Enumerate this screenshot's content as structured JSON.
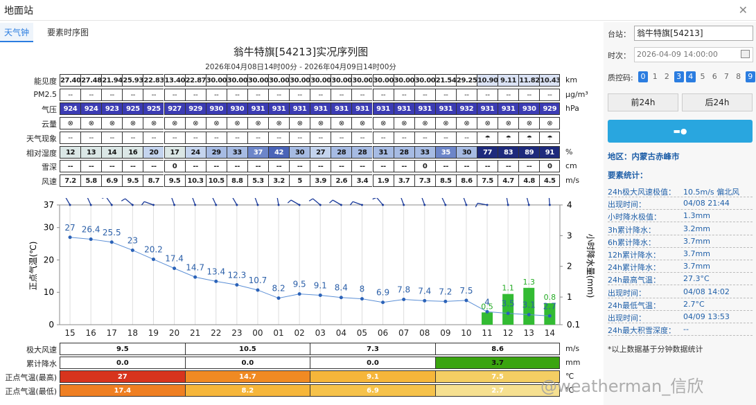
{
  "window_title": "地面站",
  "tabs": [
    "天气钟",
    "要素时序图"
  ],
  "title": "翁牛特旗[54213]实况序列图",
  "subtitle": "2026年04月08日14时00分 - 2026年04月09日14时00分",
  "grid": {
    "rows": [
      {
        "label": "能见度",
        "unit": "km",
        "values": [
          "27.40",
          "27.48",
          "21.94",
          "25.93",
          "22.83",
          "13.40",
          "22.87",
          "30.00",
          "30.00",
          "30.00",
          "30.00",
          "30.00",
          "30.00",
          "30.00",
          "30.00",
          "30.00",
          "30.00",
          "30.00",
          "21.54",
          "29.25",
          "10.90",
          "9.11",
          "11.82",
          "10.43"
        ]
      },
      {
        "label": "PM2.5",
        "unit": "μg/m³",
        "values": [
          "--",
          "--",
          "--",
          "--",
          "--",
          "--",
          "--",
          "--",
          "--",
          "--",
          "--",
          "--",
          "--",
          "--",
          "--",
          "--",
          "--",
          "--",
          "--",
          "--",
          "--",
          "--",
          "--",
          "--"
        ]
      },
      {
        "label": "气压",
        "unit": "hPa",
        "values": [
          "924",
          "924",
          "923",
          "925",
          "925",
          "927",
          "929",
          "930",
          "930",
          "931",
          "931",
          "931",
          "931",
          "931",
          "931",
          "931",
          "931",
          "931",
          "931",
          "932",
          "931",
          "931",
          "930",
          "929"
        ]
      },
      {
        "label": "云量",
        "unit": "",
        "values": [
          "⊗",
          "⊗",
          "⊗",
          "⊗",
          "⊗",
          "⊗",
          "⊗",
          "⊗",
          "⊗",
          "⊗",
          "⊗",
          "⊗",
          "⊗",
          "⊗",
          "⊗",
          "⊗",
          "⊗",
          "⊗",
          "⊗",
          "⊗",
          "⊗",
          "⊗",
          "⊗",
          "⊗"
        ]
      },
      {
        "label": "天气现象",
        "unit": "",
        "values": [
          "--",
          "--",
          "--",
          "--",
          "--",
          "--",
          "--",
          "--",
          "--",
          "--",
          "--",
          "--",
          "--",
          "--",
          "--",
          "--",
          "--",
          "--",
          "--",
          "--",
          "rain",
          "rain",
          "rain",
          "rain"
        ]
      },
      {
        "label": "相对湿度",
        "unit": "%",
        "values": [
          "12",
          "13",
          "14",
          "16",
          "20",
          "17",
          "24",
          "29",
          "33",
          "37",
          "42",
          "30",
          "27",
          "28",
          "28",
          "31",
          "28",
          "33",
          "35",
          "30",
          "77",
          "83",
          "89",
          "91"
        ]
      },
      {
        "label": "雪深",
        "unit": "cm",
        "values": [
          "--",
          "--",
          "--",
          "--",
          "--",
          "0",
          "--",
          "--",
          "--",
          "--",
          "--",
          "--",
          "--",
          "--",
          "--",
          "--",
          "--",
          "0",
          "--",
          "--",
          "--",
          "--",
          "--",
          "0"
        ]
      },
      {
        "label": "风速",
        "unit": "m/s",
        "values": [
          "7.2",
          "5.8",
          "6.9",
          "9.5",
          "8.7",
          "9.5",
          "10.3",
          "10.5",
          "8.8",
          "5.3",
          "3.2",
          "5",
          "3.9",
          "2.6",
          "3.4",
          "1.9",
          "3.7",
          "7.3",
          "8.5",
          "8.6",
          "7.5",
          "4.7",
          "4.8",
          "4.5"
        ]
      }
    ]
  },
  "chart_data": {
    "type": "line",
    "x": [
      "15",
      "16",
      "17",
      "18",
      "19",
      "20",
      "21",
      "22",
      "23",
      "00",
      "01",
      "02",
      "03",
      "04",
      "05",
      "06",
      "07",
      "08",
      "09",
      "10",
      "11",
      "12",
      "13",
      "14"
    ],
    "ylabel": "正点气温(℃)",
    "y2label": "小时降水量(mm)",
    "yticks": [
      "37",
      "30",
      "20",
      "10",
      "0"
    ],
    "y2ticks": [
      "4",
      "3",
      "2",
      "1",
      "0.1"
    ],
    "series": [
      {
        "values": [
          27,
          26.4,
          25.5,
          23,
          20.2,
          17.4,
          14.7,
          13.4,
          12.3,
          10.7,
          8.2,
          9.5,
          9.1,
          8.4,
          8,
          6.9,
          7.8,
          7.4,
          7.2,
          7.5,
          4,
          3.5,
          3.1,
          2.7
        ]
      },
      {
        "type": "bar",
        "values": [
          0,
          0,
          0,
          0,
          0,
          0,
          0,
          0,
          0,
          0,
          0,
          0,
          0,
          0,
          0,
          0,
          0,
          0,
          0,
          0,
          0.5,
          1.1,
          1.3,
          0.8
        ]
      }
    ]
  },
  "bottom": {
    "rows": [
      {
        "label": "极大风速",
        "unit": "m/s",
        "values": [
          "9.5",
          "10.5",
          "7.3",
          "8.6"
        ],
        "colors": [
          "#ffffff",
          "#ffffff",
          "#ffffff",
          "#ffffff"
        ],
        "text": [
          "#111",
          "#111",
          "#111",
          "#111"
        ]
      },
      {
        "label": "累计降水",
        "unit": "mm",
        "values": [
          "0.0",
          "0.0",
          "0.0",
          "3.7"
        ],
        "colors": [
          "#ffffff",
          "#ffffff",
          "#ffffff",
          "#3aa40f"
        ],
        "text": [
          "#111",
          "#111",
          "#111",
          "#111"
        ]
      },
      {
        "label": "正点气温(最高)",
        "unit": "℃",
        "values": [
          "27",
          "14.7",
          "9.1",
          "7.5"
        ],
        "colors": [
          "#d7341d",
          "#f08a23",
          "#f6b63a",
          "#f4ce63"
        ],
        "text": [
          "#fff",
          "#fff",
          "#fff",
          "#fff"
        ]
      },
      {
        "label": "正点气温(最低)",
        "unit": "℃",
        "values": [
          "17.4",
          "8.2",
          "6.9",
          "2.7"
        ],
        "colors": [
          "#ef7f22",
          "#f6b63a",
          "#f6c24a",
          "#f6e090"
        ],
        "text": [
          "#fff",
          "#fff",
          "#fff",
          "#fff"
        ]
      }
    ]
  },
  "side": {
    "station_label": "台站：",
    "station": "翁牛特旗[54213]",
    "time_label": "时次：",
    "time": "2026-04-09 14:00:00",
    "qc_label": "质控码:",
    "qc": [
      "0",
      "1",
      "2",
      "3",
      "4",
      "5",
      "6",
      "7",
      "8",
      "9"
    ],
    "prev": "前24h",
    "next": "后24h",
    "region": "地区：内蒙古赤峰市",
    "stats_title": "要素统计：",
    "stats": [
      {
        "k": "24h极大风速极值：",
        "v": "10.5m/s 偏北风"
      },
      {
        "k": "出现时间：",
        "v": "04/08 21:44"
      },
      {
        "k": "小时降水极值：",
        "v": "1.3mm"
      },
      {
        "k": "3h累计降水：",
        "v": "3.2mm"
      },
      {
        "k": "6h累计降水：",
        "v": "3.7mm"
      },
      {
        "k": "12h累计降水：",
        "v": "3.7mm"
      },
      {
        "k": "24h累计降水：",
        "v": "3.7mm"
      },
      {
        "k": "24h最高气温：",
        "v": "27.3°C"
      },
      {
        "k": "出现时间：",
        "v": "04/08 14:02"
      },
      {
        "k": "24h最低气温：",
        "v": "2.7°C"
      },
      {
        "k": "出现时间：",
        "v": "04/09 13:53"
      },
      {
        "k": "24h最大积雪深度：",
        "v": "--"
      }
    ],
    "note": "*以上数据基于分钟数据统计"
  },
  "watermark": "@weatherman_信欣"
}
